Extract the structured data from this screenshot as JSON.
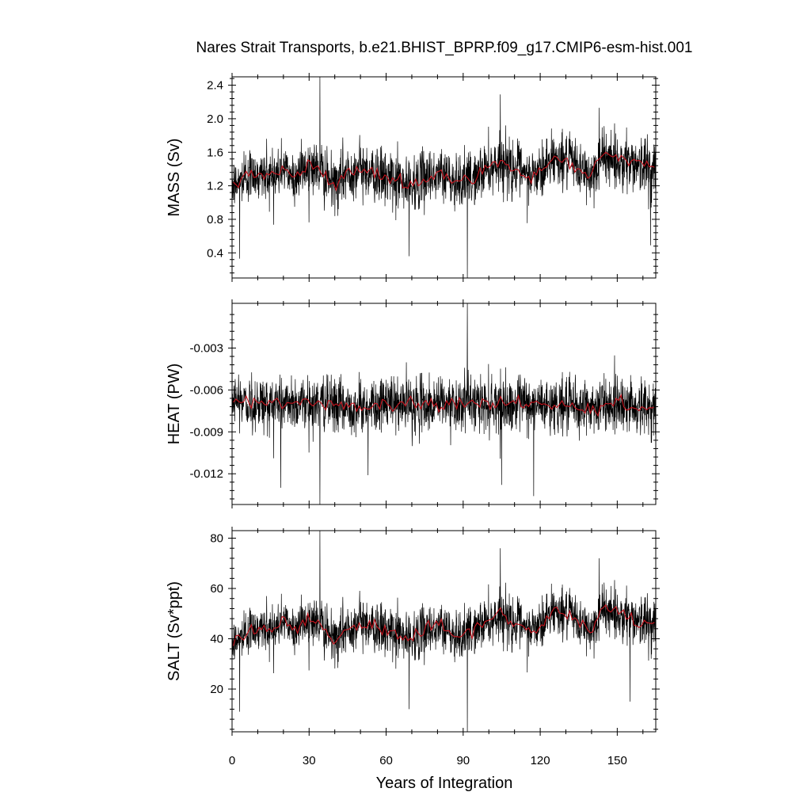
{
  "chart_data": {
    "type": "line",
    "title": "Nares Strait Transports, b.e21.BHIST_BPRP.f09_g17.CMIP6-esm-hist.001",
    "xlabel": "Years of Integration",
    "xlim": [
      0,
      165
    ],
    "xticks": [
      0,
      30,
      60,
      90,
      120,
      150
    ],
    "xtick_labels": [
      "0",
      "30",
      "60",
      "90",
      "120",
      "150"
    ],
    "colors": {
      "raw": "#000000",
      "smoothed": "#c8141e"
    },
    "panels": [
      {
        "ylabel": "MASS (Sv)",
        "ylim": [
          0.1,
          2.5
        ],
        "yticks": [
          0.4,
          0.8,
          1.2,
          1.6,
          2.0,
          2.4
        ],
        "ytick_labels": [
          "0.4",
          "0.8",
          "1.2",
          "1.6",
          "2.0",
          "2.4"
        ],
        "monthly_noise_sd": 0.2,
        "annual_mean": {
          "years": [
            0,
            5,
            10,
            15,
            20,
            25,
            30,
            35,
            40,
            45,
            50,
            55,
            60,
            65,
            70,
            75,
            80,
            85,
            90,
            95,
            100,
            105,
            110,
            115,
            120,
            125,
            130,
            135,
            140,
            145,
            150,
            155,
            160,
            165
          ],
          "values": [
            1.2,
            1.3,
            1.35,
            1.3,
            1.4,
            1.3,
            1.45,
            1.35,
            1.2,
            1.35,
            1.4,
            1.35,
            1.3,
            1.25,
            1.2,
            1.3,
            1.35,
            1.3,
            1.25,
            1.3,
            1.45,
            1.5,
            1.4,
            1.3,
            1.35,
            1.55,
            1.5,
            1.4,
            1.3,
            1.6,
            1.5,
            1.5,
            1.45,
            1.4
          ]
        },
        "extremes": [
          [
            34.2,
            2.5
          ],
          [
            91.6,
            0.1
          ],
          [
            3.0,
            0.33
          ],
          [
            69.0,
            0.36
          ],
          [
            104.5,
            2.29
          ],
          [
            143.0,
            2.13
          ],
          [
            163.0,
            0.49
          ]
        ]
      },
      {
        "ylabel": "HEAT (PW)",
        "ylim": [
          -0.0142,
          0.0002
        ],
        "yticks": [
          -0.003,
          -0.006,
          -0.009,
          -0.012
        ],
        "ytick_labels": [
          "-0.003",
          "-0.006",
          "-0.009",
          "-0.012"
        ],
        "monthly_noise_sd": 0.0012,
        "annual_mean": {
          "years": [
            0,
            15,
            30,
            45,
            60,
            75,
            90,
            105,
            120,
            135,
            150,
            165
          ],
          "values": [
            -0.0068,
            -0.007,
            -0.0069,
            -0.0072,
            -0.007,
            -0.0071,
            -0.0069,
            -0.0071,
            -0.007,
            -0.0072,
            -0.007,
            -0.0074
          ]
        },
        "extremes": [
          [
            91.6,
            0.0002
          ],
          [
            34.2,
            -0.0142
          ],
          [
            117.5,
            -0.0136
          ],
          [
            19.0,
            -0.013
          ],
          [
            105.0,
            -0.0128
          ],
          [
            53.0,
            -0.0121
          ]
        ]
      },
      {
        "ylabel": "SALT (Sv*ppt)",
        "ylim": [
          3,
          83
        ],
        "yticks": [
          20,
          40,
          60,
          80
        ],
        "ytick_labels": [
          "20",
          "40",
          "60",
          "80"
        ],
        "monthly_noise_sd": 6,
        "annual_mean": {
          "years": [
            0,
            5,
            10,
            15,
            20,
            25,
            30,
            35,
            40,
            45,
            50,
            55,
            60,
            65,
            70,
            75,
            80,
            85,
            90,
            95,
            100,
            105,
            110,
            115,
            120,
            125,
            130,
            135,
            140,
            145,
            150,
            155,
            160,
            165
          ],
          "values": [
            38,
            42,
            45,
            43,
            47,
            44,
            48,
            45,
            39,
            44,
            47,
            45,
            43,
            42,
            40,
            43,
            45,
            43,
            41,
            44,
            48,
            50,
            46,
            43,
            45,
            52,
            50,
            46,
            43,
            53,
            50,
            49,
            47,
            46
          ]
        },
        "extremes": [
          [
            34.2,
            83
          ],
          [
            91.6,
            3
          ],
          [
            3.0,
            11
          ],
          [
            69.0,
            12
          ],
          [
            104.5,
            76
          ],
          [
            143.0,
            72
          ],
          [
            155.0,
            15
          ]
        ]
      }
    ]
  }
}
